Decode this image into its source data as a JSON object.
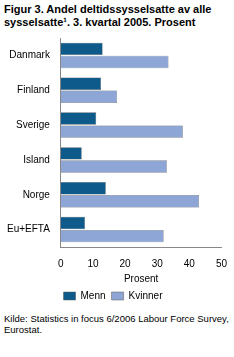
{
  "chart_data": {
    "type": "bar",
    "orientation": "horizontal",
    "title": "Figur 3. Andel deltidssysselsatte av alle sysselsatte¹. 3. kvartal 2005. Prosent",
    "x_label": "Prosent",
    "source": "Kilde: Statistics in focus 6/2006 Labour Force Survey, Eurostat.",
    "categories": [
      "Danmark",
      "Finland",
      "Sverige",
      "Island",
      "Norge",
      "Eu+EFTA"
    ],
    "series": [
      {
        "name": "Menn",
        "color": "#0e5a8a",
        "values": [
          13,
          12.5,
          11,
          6.5,
          14,
          7.5
        ]
      },
      {
        "name": "Kvinner",
        "color": "#8ea6d6",
        "values": [
          33.5,
          17.5,
          38,
          33,
          43,
          32
        ]
      }
    ],
    "xlim": [
      0,
      50
    ],
    "xticks": [
      0,
      10,
      20,
      30,
      40,
      50
    ],
    "grid": false,
    "legend": "bottom"
  }
}
